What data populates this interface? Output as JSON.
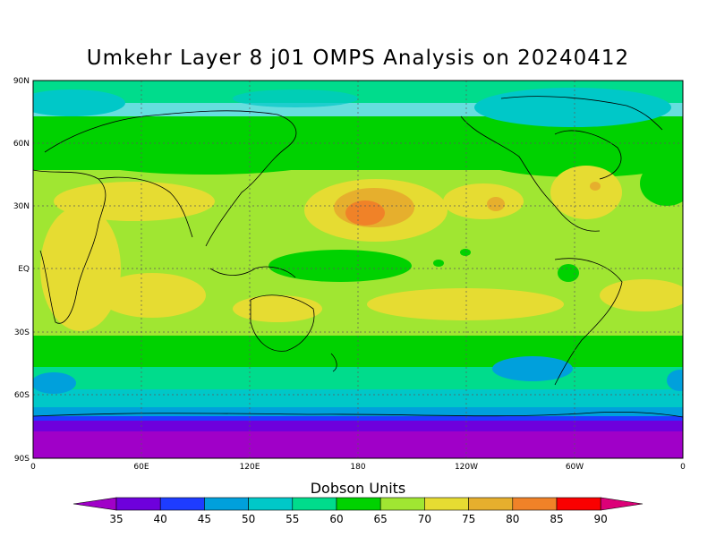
{
  "title": "Umkehr Layer 8 j01 OMPS Analysis on 20240412",
  "axes": {
    "lat_labels": [
      "90N",
      "60N",
      "30N",
      "EQ",
      "30S",
      "60S",
      "90S"
    ],
    "lon_labels": [
      "0",
      "60E",
      "120E",
      "180",
      "120W",
      "60W",
      "0"
    ]
  },
  "colorbar": {
    "title": "Dobson Units",
    "ticks": [
      "35",
      "40",
      "45",
      "50",
      "55",
      "60",
      "65",
      "70",
      "75",
      "80",
      "85",
      "90"
    ],
    "colors": [
      "#a000c8",
      "#6e00dc",
      "#1e3cff",
      "#00a0dc",
      "#00c8c8",
      "#00dc8c",
      "#00d200",
      "#a0e632",
      "#e6dc32",
      "#e6af2d",
      "#f08228",
      "#fa0000",
      "#dc0078"
    ]
  },
  "chart_data": {
    "type": "heatmap",
    "title": "Umkehr Layer 8 j01 OMPS Analysis on 20240412",
    "units": "Dobson Units",
    "lon_range": [
      0,
      360
    ],
    "lat_range": [
      -90,
      90
    ],
    "levels": [
      35,
      40,
      45,
      50,
      55,
      60,
      65,
      70,
      75,
      80,
      85,
      90
    ],
    "grid": true,
    "features": [
      {
        "region": "North Pacific subtropics near 180",
        "value_range": [
          80,
          85
        ]
      },
      {
        "region": "Subtropical belts 20-30N and 20-40S",
        "value_range": [
          70,
          80
        ]
      },
      {
        "region": "Tropical Indian Ocean / Pacific",
        "value_range": [
          65,
          75
        ]
      },
      {
        "region": "Northern mid-latitudes 50-65N",
        "value_range": [
          60,
          65
        ]
      },
      {
        "region": "Arctic 70-90N",
        "value_range": [
          55,
          65
        ]
      },
      {
        "region": "Southern ocean 50-65S",
        "value_range": [
          45,
          60
        ]
      },
      {
        "region": "Antarctica 70-90S",
        "value_range": [
          35,
          45
        ]
      }
    ]
  }
}
